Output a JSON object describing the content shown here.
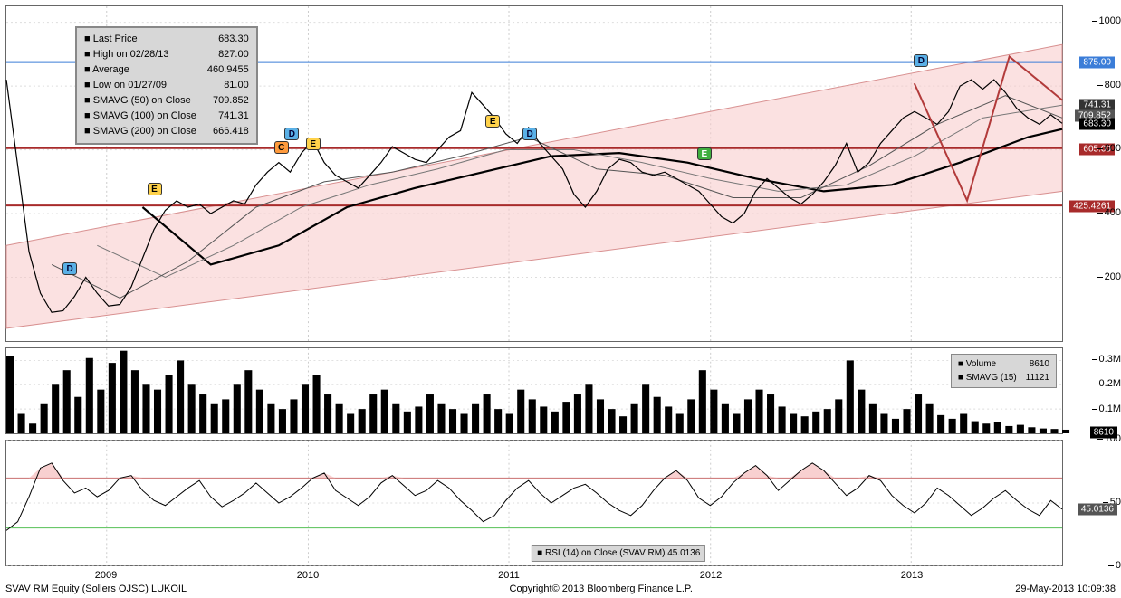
{
  "footer": {
    "left": "SVAV RM Equity (Sollers OJSC) LUKOIL",
    "center": "Copyright© 2013 Bloomberg Finance L.P.",
    "right": "29-May-2013 10:09:38"
  },
  "xaxis": {
    "labels": [
      "2009",
      "2010",
      "2011",
      "2012",
      "2013"
    ],
    "positions_pct": [
      9.5,
      28.6,
      47.6,
      66.7,
      85.7
    ]
  },
  "price_panel": {
    "ylim": [
      0,
      1050
    ],
    "ticks": [
      200,
      400,
      600,
      800,
      1000
    ],
    "hlines": [
      {
        "value": 875.0,
        "color": "#3b7dd8",
        "width": 2,
        "tag_bg": "#3b7dd8",
        "tag_text": "875.00"
      },
      {
        "value": 605.0,
        "color": "#a82b2b",
        "width": 2,
        "tag_bg": "#a82b2b",
        "tag_text": "605.00"
      },
      {
        "value": 425.4261,
        "color": "#a82b2b",
        "width": 2,
        "tag_bg": "#a82b2b",
        "tag_text": "425.4261"
      }
    ],
    "price_tags": [
      {
        "value": 741.31,
        "bg": "#333333",
        "text": "741.31"
      },
      {
        "value": 709.85,
        "bg": "#555555",
        "text": "709.852"
      },
      {
        "value": 683.3,
        "bg": "#000000",
        "text": "683.30"
      }
    ],
    "channel": {
      "fill": "#f7c9c9",
      "opacity": 0.55,
      "top_start": 300,
      "top_end": 930,
      "bot_start": 40,
      "bot_end": 470
    },
    "projection": {
      "color": "#b23a3a",
      "width": 2,
      "points_pct": [
        [
          86,
          77
        ],
        [
          91,
          42
        ],
        [
          95,
          85
        ],
        [
          100,
          72
        ]
      ]
    },
    "legend": {
      "rows": [
        [
          "Last Price",
          "683.30"
        ],
        [
          "High on 02/28/13",
          "827.00"
        ],
        [
          "Average",
          "460.9455"
        ],
        [
          "Low on 01/27/09",
          "81.00"
        ],
        [
          "SMAVG (50) on Close",
          "709.852"
        ],
        [
          "SMAVG (100) on Close",
          "741.31"
        ],
        [
          "SMAVG (200) on Close",
          "666.418"
        ]
      ]
    },
    "markers": [
      {
        "label": "D",
        "cls": "marker-D",
        "x_pct": 6.0,
        "y_val": 200
      },
      {
        "label": "E",
        "cls": "marker-E",
        "x_pct": 14.0,
        "y_val": 450
      },
      {
        "label": "C",
        "cls": "marker-C",
        "x_pct": 26.0,
        "y_val": 580
      },
      {
        "label": "D",
        "cls": "marker-D",
        "x_pct": 27.0,
        "y_val": 620
      },
      {
        "label": "E",
        "cls": "marker-E",
        "x_pct": 29.0,
        "y_val": 590
      },
      {
        "label": "E",
        "cls": "marker-E",
        "x_pct": 46.0,
        "y_val": 660
      },
      {
        "label": "D",
        "cls": "marker-D",
        "x_pct": 49.5,
        "y_val": 620
      },
      {
        "label": "E",
        "cls": "marker-Eg",
        "x_pct": 66.0,
        "y_val": 560
      },
      {
        "label": "D",
        "cls": "marker-D",
        "x_pct": 86.5,
        "y_val": 850
      }
    ],
    "price_series": [
      [
        0,
        820
      ],
      [
        1,
        550
      ],
      [
        2,
        280
      ],
      [
        3,
        150
      ],
      [
        4,
        90
      ],
      [
        5,
        95
      ],
      [
        6,
        140
      ],
      [
        7,
        200
      ],
      [
        8,
        150
      ],
      [
        9,
        110
      ],
      [
        10,
        115
      ],
      [
        11,
        170
      ],
      [
        12,
        260
      ],
      [
        13,
        350
      ],
      [
        14,
        410
      ],
      [
        15,
        440
      ],
      [
        16,
        420
      ],
      [
        17,
        430
      ],
      [
        18,
        400
      ],
      [
        19,
        420
      ],
      [
        20,
        440
      ],
      [
        21,
        430
      ],
      [
        22,
        490
      ],
      [
        23,
        530
      ],
      [
        24,
        560
      ],
      [
        25,
        530
      ],
      [
        26,
        590
      ],
      [
        27,
        628
      ],
      [
        28,
        560
      ],
      [
        29,
        520
      ],
      [
        30,
        500
      ],
      [
        31,
        480
      ],
      [
        32,
        520
      ],
      [
        33,
        560
      ],
      [
        34,
        610
      ],
      [
        35,
        590
      ],
      [
        36,
        570
      ],
      [
        37,
        560
      ],
      [
        38,
        600
      ],
      [
        39,
        640
      ],
      [
        40,
        660
      ],
      [
        41,
        780
      ],
      [
        42,
        740
      ],
      [
        43,
        700
      ],
      [
        44,
        650
      ],
      [
        45,
        620
      ],
      [
        46,
        670
      ],
      [
        47,
        620
      ],
      [
        48,
        580
      ],
      [
        49,
        540
      ],
      [
        50,
        460
      ],
      [
        51,
        420
      ],
      [
        52,
        470
      ],
      [
        53,
        540
      ],
      [
        54,
        570
      ],
      [
        55,
        560
      ],
      [
        56,
        530
      ],
      [
        57,
        520
      ],
      [
        58,
        530
      ],
      [
        59,
        510
      ],
      [
        60,
        490
      ],
      [
        61,
        470
      ],
      [
        62,
        430
      ],
      [
        63,
        390
      ],
      [
        64,
        370
      ],
      [
        65,
        400
      ],
      [
        66,
        470
      ],
      [
        67,
        510
      ],
      [
        68,
        480
      ],
      [
        69,
        450
      ],
      [
        70,
        430
      ],
      [
        71,
        460
      ],
      [
        72,
        500
      ],
      [
        73,
        550
      ],
      [
        74,
        620
      ],
      [
        75,
        530
      ],
      [
        76,
        560
      ],
      [
        77,
        620
      ],
      [
        78,
        660
      ],
      [
        79,
        700
      ],
      [
        80,
        720
      ],
      [
        81,
        700
      ],
      [
        82,
        680
      ],
      [
        83,
        720
      ],
      [
        84,
        800
      ],
      [
        85,
        820
      ],
      [
        86,
        790
      ],
      [
        87,
        820
      ],
      [
        88,
        780
      ],
      [
        89,
        730
      ],
      [
        90,
        700
      ],
      [
        91,
        680
      ],
      [
        92,
        710
      ],
      [
        93,
        683
      ]
    ],
    "sma50": [
      [
        4,
        240
      ],
      [
        10,
        135
      ],
      [
        16,
        250
      ],
      [
        22,
        420
      ],
      [
        28,
        500
      ],
      [
        34,
        530
      ],
      [
        40,
        580
      ],
      [
        46,
        640
      ],
      [
        52,
        540
      ],
      [
        58,
        520
      ],
      [
        64,
        450
      ],
      [
        70,
        450
      ],
      [
        76,
        550
      ],
      [
        82,
        680
      ],
      [
        88,
        770
      ],
      [
        93,
        700
      ]
    ],
    "sma100": [
      [
        8,
        300
      ],
      [
        14,
        200
      ],
      [
        20,
        300
      ],
      [
        26,
        420
      ],
      [
        32,
        490
      ],
      [
        38,
        540
      ],
      [
        44,
        600
      ],
      [
        50,
        600
      ],
      [
        56,
        560
      ],
      [
        62,
        510
      ],
      [
        68,
        470
      ],
      [
        74,
        490
      ],
      [
        80,
        580
      ],
      [
        86,
        700
      ],
      [
        93,
        740
      ]
    ],
    "sma200": [
      [
        12,
        420
      ],
      [
        18,
        240
      ],
      [
        24,
        300
      ],
      [
        30,
        420
      ],
      [
        36,
        480
      ],
      [
        42,
        530
      ],
      [
        48,
        580
      ],
      [
        54,
        590
      ],
      [
        60,
        560
      ],
      [
        66,
        510
      ],
      [
        72,
        470
      ],
      [
        78,
        490
      ],
      [
        84,
        560
      ],
      [
        90,
        640
      ],
      [
        93,
        665
      ]
    ],
    "colors": {
      "price": "#000000",
      "sma50": "#555555",
      "sma100": "#777777",
      "sma200": "#000000",
      "sma200_width": 2.2
    }
  },
  "volume_panel": {
    "ylim": [
      0,
      350000
    ],
    "ticks": [
      100000,
      200000,
      300000
    ],
    "tick_labels": [
      "0.1M",
      "0.2M",
      "0.3M"
    ],
    "current": 8610,
    "legend": {
      "rows": [
        [
          "Volume",
          "8610"
        ],
        [
          "SMAVG (15)",
          "11121"
        ]
      ]
    },
    "bars": [
      320,
      80,
      40,
      120,
      200,
      260,
      150,
      310,
      180,
      290,
      340,
      260,
      200,
      180,
      240,
      300,
      200,
      160,
      120,
      140,
      200,
      260,
      180,
      120,
      100,
      140,
      200,
      240,
      160,
      120,
      80,
      100,
      160,
      180,
      120,
      90,
      110,
      160,
      120,
      100,
      80,
      120,
      160,
      100,
      80,
      180,
      140,
      110,
      90,
      130,
      160,
      200,
      140,
      100,
      70,
      120,
      200,
      150,
      110,
      80,
      140,
      260,
      180,
      120,
      80,
      140,
      180,
      160,
      110,
      80,
      70,
      90,
      100,
      140,
      300,
      180,
      120,
      80,
      60,
      100,
      160,
      120,
      75,
      60,
      80,
      50,
      40,
      45,
      30,
      35,
      25,
      20,
      18,
      15
    ],
    "bar_color": "#000000"
  },
  "rsi_panel": {
    "ylim": [
      0,
      100
    ],
    "ticks": [
      0,
      50,
      100
    ],
    "bands": {
      "upper": 70,
      "lower": 30,
      "upper_color": "#c96f6f",
      "lower_color": "#55c055"
    },
    "current": 45.0136,
    "legend": "RSI (14) on Close (SVAV RM) 45.0136",
    "series": [
      28,
      35,
      55,
      78,
      82,
      68,
      58,
      62,
      55,
      60,
      70,
      72,
      60,
      52,
      48,
      55,
      62,
      68,
      55,
      47,
      52,
      58,
      66,
      58,
      50,
      55,
      62,
      70,
      74,
      60,
      54,
      48,
      55,
      66,
      72,
      64,
      56,
      60,
      68,
      62,
      52,
      44,
      35,
      40,
      52,
      62,
      68,
      58,
      50,
      56,
      62,
      65,
      58,
      50,
      44,
      40,
      48,
      60,
      70,
      76,
      68,
      54,
      48,
      55,
      66,
      74,
      80,
      72,
      60,
      68,
      76,
      82,
      76,
      66,
      56,
      62,
      72,
      68,
      56,
      48,
      42,
      50,
      62,
      56,
      48,
      40,
      46,
      54,
      60,
      52,
      45,
      40,
      52,
      45
    ]
  }
}
